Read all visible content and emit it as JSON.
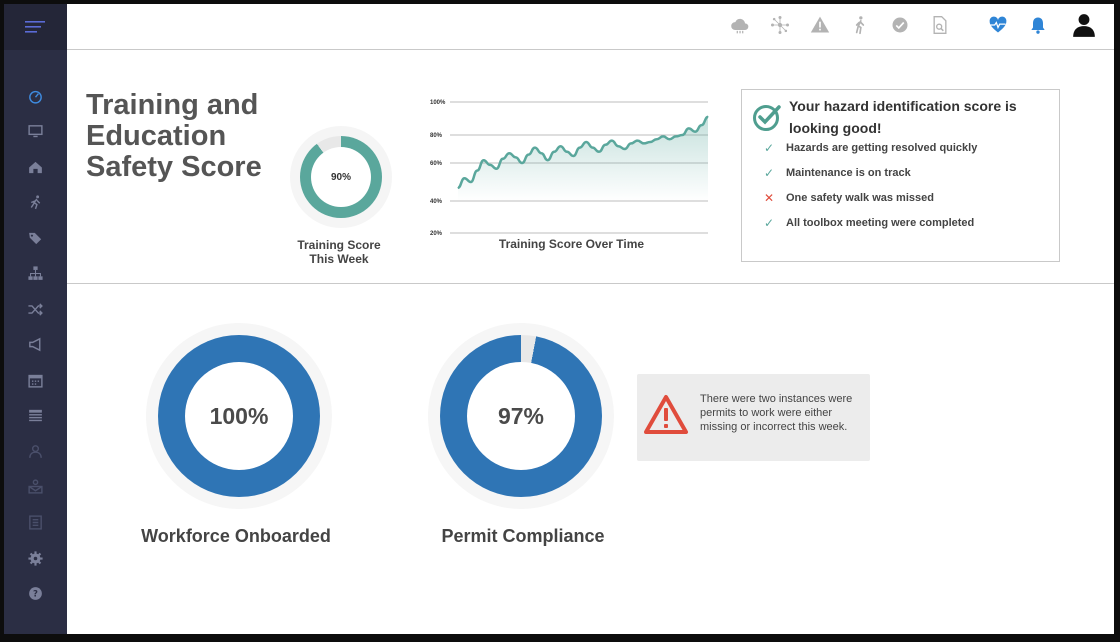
{
  "sidebar": {
    "items": [
      {
        "icon": "dashboard-gauge-icon"
      },
      {
        "icon": "monitor-icon"
      },
      {
        "icon": "home-icon"
      },
      {
        "icon": "running-person-icon"
      },
      {
        "icon": "tags-icon"
      },
      {
        "icon": "org-chart-icon"
      },
      {
        "icon": "shuffle-icon"
      },
      {
        "icon": "megaphone-icon"
      },
      {
        "icon": "calendar-icon"
      },
      {
        "icon": "list-table-icon"
      },
      {
        "icon": "person-outline-icon"
      },
      {
        "icon": "mail-user-icon"
      },
      {
        "icon": "document-list-icon"
      },
      {
        "icon": "settings-icon"
      },
      {
        "icon": "help-icon"
      }
    ]
  },
  "topbar": {
    "icons": [
      "cloud-icon",
      "network-icon",
      "warning-icon",
      "walking-icon",
      "check-circle-icon",
      "document-search-icon",
      "heart-pulse-icon",
      "bell-icon",
      "user-icon"
    ]
  },
  "training": {
    "title": "Training and Education Safety Score",
    "score_label": "90%",
    "score_value": 90,
    "score_caption": "Training Score This Week",
    "chart_caption": "Training Score Over Time"
  },
  "hazard": {
    "title": "Your hazard identification score is looking good!",
    "items": [
      {
        "text": "Hazards are getting resolved quickly",
        "status": "ok"
      },
      {
        "text": "Maintenance is on track",
        "status": "ok"
      },
      {
        "text": "One safety walk was missed",
        "status": "fail"
      },
      {
        "text": "All toolbox meeting were completed",
        "status": "ok"
      }
    ]
  },
  "workforce": {
    "value": 100,
    "label": "100%",
    "caption": "Workforce Onboarded"
  },
  "permit": {
    "value": 97,
    "label": "97%",
    "caption": "Permit Compliance"
  },
  "alert": {
    "text": "There were two instances were permits to work were either missing or incorrect this week."
  },
  "colors": {
    "teal": "#5aa79c",
    "blue": "#2f75b5",
    "sidebar": "#2b2e44",
    "red": "#e04c3c"
  },
  "chart_data": {
    "type": "line",
    "title": "Training Score Over Time",
    "yticks": [
      "100%",
      "80%",
      "60%",
      "40%",
      "20%"
    ],
    "ylim": [
      20,
      100
    ],
    "x": [
      0,
      1,
      2,
      3,
      4,
      5,
      6,
      7,
      8,
      9,
      10,
      11,
      12,
      13,
      14,
      15,
      16,
      17,
      18,
      19,
      20,
      21,
      22,
      23,
      24,
      25,
      26,
      27,
      28,
      29,
      30,
      31,
      32,
      33,
      34,
      35,
      36,
      37,
      38,
      39
    ],
    "series": [
      {
        "values": [
          47,
          52,
          50,
          56,
          62,
          59,
          57,
          63,
          67,
          64,
          60,
          66,
          71,
          67,
          62,
          68,
          72,
          68,
          65,
          71,
          75,
          71,
          68,
          73,
          76,
          72,
          70,
          74,
          76,
          74,
          75,
          77,
          79,
          77,
          79,
          80,
          84,
          82,
          86,
          91
        ]
      }
    ]
  }
}
